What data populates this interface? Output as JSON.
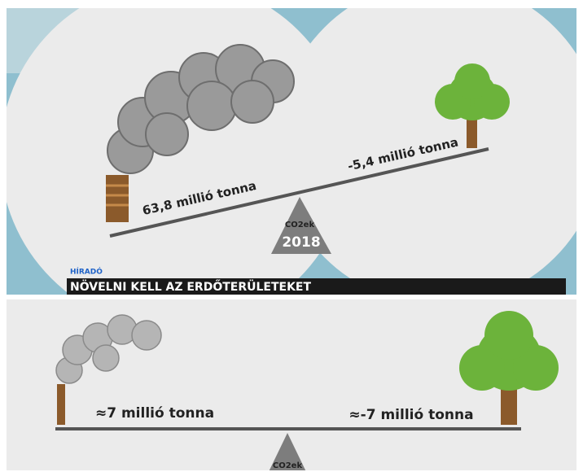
{
  "top_panel": {
    "left_label": "63,8 millió tonna",
    "right_label": "-5,4 millió tonna",
    "fulcrum_unit": "CO2ek",
    "fulcrum_year": "2018",
    "news_tag": "HÍRADÓ",
    "headline": "NÖVELNI KELL AZ ERDŐTERÜLETEKET"
  },
  "bottom_panel": {
    "left_label": "≈7 millió tonna",
    "right_label": "≈-7 millió tonna",
    "fulcrum_unit": "CO2ek"
  }
}
